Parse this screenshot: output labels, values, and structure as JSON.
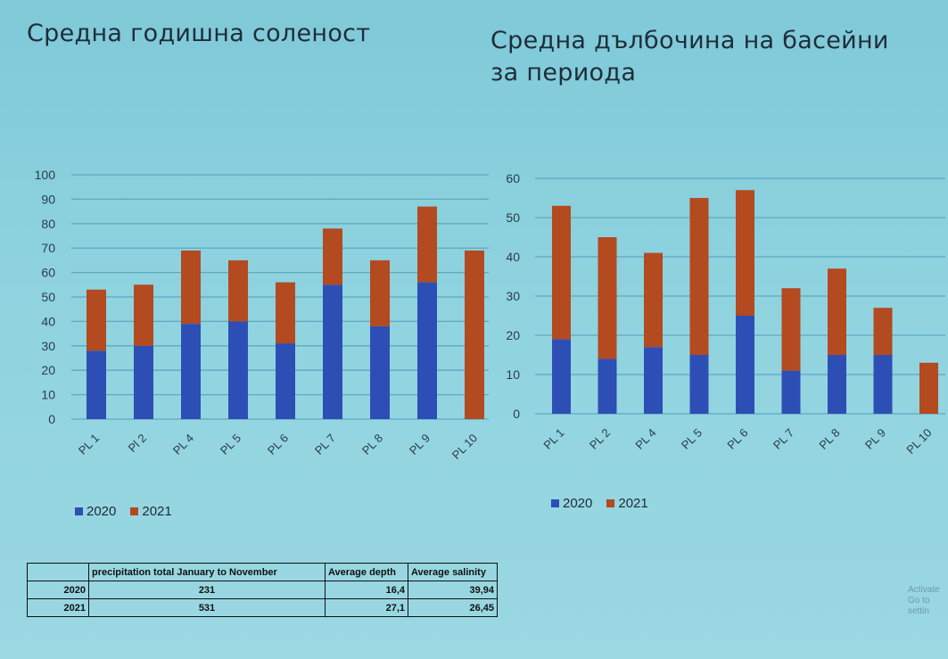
{
  "titles": {
    "left": "Средна годишна соленост",
    "right": "Средна дълбочина на басейни за периода"
  },
  "colors": {
    "s2020": "#2d4fb5",
    "s2021": "#b34a20",
    "grid": "#5fa8c2",
    "axis_text": "#2a3c4a"
  },
  "chart_data": [
    {
      "type": "bar",
      "stacked": true,
      "title": "Средна годишна соленост",
      "categories": [
        "PL 1",
        "Pl 2",
        "PL 4",
        "PL 5",
        "PL 6",
        "PL 7",
        "PL 8",
        "PL 9",
        "PL 10"
      ],
      "series": [
        {
          "name": "2020",
          "values": [
            28,
            30,
            39,
            40,
            31,
            55,
            38,
            56,
            0
          ]
        },
        {
          "name": "2021",
          "values": [
            25,
            25,
            30,
            25,
            25,
            23,
            27,
            31,
            69
          ]
        }
      ],
      "ylim": [
        0,
        100
      ],
      "yticks": [
        0,
        10,
        20,
        30,
        40,
        50,
        60,
        70,
        80,
        90,
        100
      ],
      "grid": true,
      "legend": "bottom-left"
    },
    {
      "type": "bar",
      "stacked": true,
      "title": "Средна дълбочина на басейни за периода",
      "categories": [
        "PL 1",
        "PL 2",
        "PL 4",
        "PL 5",
        "PL 6",
        "PL 7",
        "PL 8",
        "PL 9",
        "PL 10"
      ],
      "series": [
        {
          "name": "2020",
          "values": [
            19,
            14,
            17,
            15,
            25,
            11,
            15,
            15,
            0
          ]
        },
        {
          "name": "2021",
          "values": [
            34,
            31,
            24,
            40,
            32,
            21,
            22,
            12,
            13
          ]
        }
      ],
      "ylim": [
        0,
        60
      ],
      "yticks": [
        0,
        10,
        20,
        30,
        40,
        50,
        60
      ],
      "grid": true,
      "legend": "bottom-left"
    }
  ],
  "legend": {
    "label_2020": "2020",
    "label_2021": "2021"
  },
  "stats_table": {
    "headers": [
      "",
      "precipitation total January to November",
      "Average depth",
      "Average salinity"
    ],
    "rows": [
      {
        "year": "2020",
        "precip": "231",
        "depth": "16,4",
        "salinity": "39,94"
      },
      {
        "year": "2021",
        "precip": "531",
        "depth": "27,1",
        "salinity": "26,45"
      }
    ]
  },
  "watermark": {
    "line1": "Activate",
    "line2": "Go to settin"
  }
}
